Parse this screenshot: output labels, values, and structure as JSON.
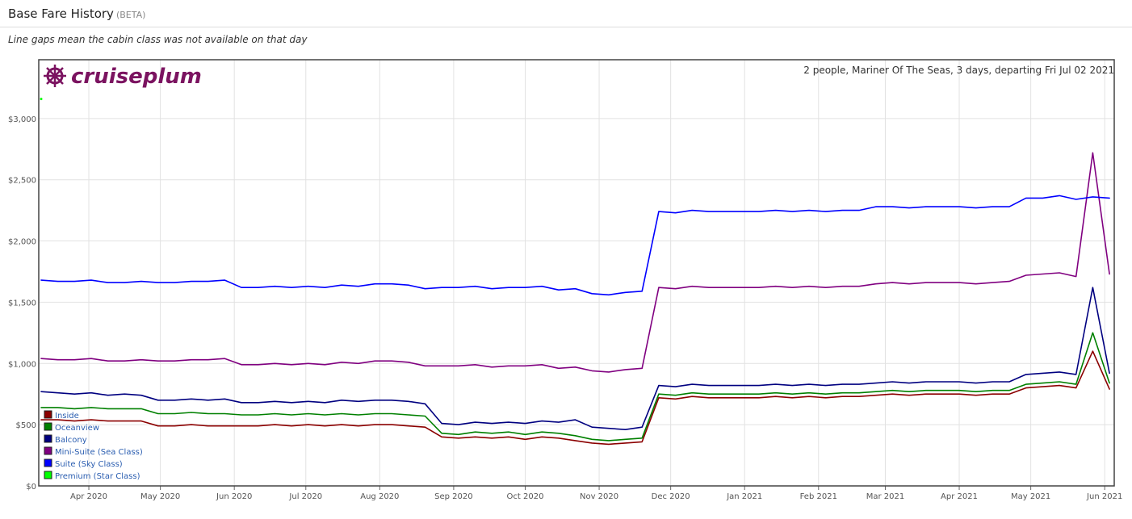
{
  "header": {
    "title": "Base Fare History",
    "badge": "(BETA)",
    "note": "Line gaps mean the cabin class was not available on that day"
  },
  "chart_data": {
    "type": "line",
    "logo": "cruiseplum",
    "subtitle": "2 people, Mariner Of The Seas, 3 days, departing Fri Jul 02 2021",
    "xlim": [
      -21,
      430
    ],
    "xticks": [
      {
        "value": 0,
        "label": "Apr 2020"
      },
      {
        "value": 30,
        "label": "May 2020"
      },
      {
        "value": 61,
        "label": "Jun 2020"
      },
      {
        "value": 91,
        "label": "Jul 2020"
      },
      {
        "value": 122,
        "label": "Aug 2020"
      },
      {
        "value": 153,
        "label": "Sep 2020"
      },
      {
        "value": 183,
        "label": "Oct 2020"
      },
      {
        "value": 214,
        "label": "Nov 2020"
      },
      {
        "value": 244,
        "label": "Dec 2020"
      },
      {
        "value": 275,
        "label": "Jan 2021"
      },
      {
        "value": 306,
        "label": "Feb 2021"
      },
      {
        "value": 334,
        "label": "Mar 2021"
      },
      {
        "value": 365,
        "label": "Apr 2021"
      },
      {
        "value": 395,
        "label": "May 2021"
      },
      {
        "value": 426,
        "label": "Jun 2021"
      }
    ],
    "ylim": [
      0,
      3480
    ],
    "yticks": [
      {
        "value": 0,
        "label": "$0"
      },
      {
        "value": 500,
        "label": "$500"
      },
      {
        "value": 1000,
        "label": "$1,000"
      },
      {
        "value": 1500,
        "label": "$1,500"
      },
      {
        "value": 2000,
        "label": "$2,000"
      },
      {
        "value": 2500,
        "label": "$2,500"
      },
      {
        "value": 3000,
        "label": "$3,000"
      }
    ],
    "grid": true,
    "legend": "bottom-left",
    "x": [
      -20,
      -13,
      -6,
      1,
      8,
      15,
      22,
      29,
      36,
      43,
      50,
      57,
      64,
      71,
      78,
      85,
      92,
      99,
      106,
      113,
      120,
      127,
      134,
      141,
      148,
      155,
      162,
      169,
      176,
      183,
      190,
      197,
      204,
      211,
      218,
      225,
      232,
      239,
      246,
      253,
      260,
      267,
      274,
      281,
      288,
      295,
      302,
      309,
      316,
      323,
      330,
      337,
      344,
      351,
      358,
      365,
      372,
      379,
      386,
      393,
      400,
      407,
      414,
      421,
      428
    ],
    "series": [
      {
        "name": "Inside",
        "color": "#8b0000",
        "values": [
          540,
          540,
          530,
          540,
          530,
          530,
          530,
          490,
          490,
          500,
          490,
          490,
          490,
          490,
          500,
          490,
          500,
          490,
          500,
          490,
          500,
          500,
          490,
          480,
          400,
          390,
          400,
          390,
          400,
          380,
          400,
          390,
          370,
          350,
          340,
          350,
          360,
          720,
          710,
          730,
          720,
          720,
          720,
          720,
          730,
          720,
          730,
          720,
          730,
          730,
          740,
          750,
          740,
          750,
          750,
          750,
          740,
          750,
          750,
          800,
          810,
          820,
          800,
          1100,
          790
        ]
      },
      {
        "name": "Oceanview",
        "color": "#008000",
        "values": [
          640,
          640,
          630,
          640,
          630,
          630,
          630,
          590,
          590,
          600,
          590,
          590,
          580,
          580,
          590,
          580,
          590,
          580,
          590,
          580,
          590,
          590,
          580,
          570,
          430,
          420,
          440,
          430,
          440,
          420,
          440,
          430,
          410,
          380,
          370,
          380,
          390,
          750,
          740,
          760,
          750,
          750,
          750,
          750,
          760,
          750,
          760,
          750,
          760,
          760,
          770,
          780,
          770,
          780,
          780,
          780,
          770,
          780,
          780,
          830,
          840,
          850,
          830,
          1250,
          840
        ]
      },
      {
        "name": "Balcony",
        "color": "#000080",
        "values": [
          770,
          760,
          750,
          760,
          740,
          750,
          740,
          700,
          700,
          710,
          700,
          710,
          680,
          680,
          690,
          680,
          690,
          680,
          700,
          690,
          700,
          700,
          690,
          670,
          510,
          500,
          520,
          510,
          520,
          510,
          530,
          520,
          540,
          480,
          470,
          460,
          480,
          820,
          810,
          830,
          820,
          820,
          820,
          820,
          830,
          820,
          830,
          820,
          830,
          830,
          840,
          850,
          840,
          850,
          850,
          850,
          840,
          850,
          850,
          910,
          920,
          930,
          910,
          1620,
          920
        ]
      },
      {
        "name": "Mini-Suite (Sea Class)",
        "color": "#800080",
        "values": [
          1040,
          1030,
          1030,
          1040,
          1020,
          1020,
          1030,
          1020,
          1020,
          1030,
          1030,
          1040,
          990,
          990,
          1000,
          990,
          1000,
          990,
          1010,
          1000,
          1020,
          1020,
          1010,
          980,
          980,
          980,
          990,
          970,
          980,
          980,
          990,
          960,
          970,
          940,
          930,
          950,
          960,
          1620,
          1610,
          1630,
          1620,
          1620,
          1620,
          1620,
          1630,
          1620,
          1630,
          1620,
          1630,
          1630,
          1650,
          1660,
          1650,
          1660,
          1660,
          1660,
          1650,
          1660,
          1670,
          1720,
          1730,
          1740,
          1710,
          2720,
          1730
        ]
      },
      {
        "name": "Suite (Sky Class)",
        "color": "#0000ff",
        "values": [
          1680,
          1670,
          1670,
          1680,
          1660,
          1660,
          1670,
          1660,
          1660,
          1670,
          1670,
          1680,
          1620,
          1620,
          1630,
          1620,
          1630,
          1620,
          1640,
          1630,
          1650,
          1650,
          1640,
          1610,
          1620,
          1620,
          1630,
          1610,
          1620,
          1620,
          1630,
          1600,
          1610,
          1570,
          1560,
          1580,
          1590,
          2240,
          2230,
          2250,
          2240,
          2240,
          2240,
          2240,
          2250,
          2240,
          2250,
          2240,
          2250,
          2250,
          2280,
          2280,
          2270,
          2280,
          2280,
          2280,
          2270,
          2280,
          2280,
          2350,
          2350,
          2370,
          2340,
          2360,
          2350
        ]
      },
      {
        "name": "Premium (Star Class)",
        "color": "#00ff00",
        "values": [
          3160,
          null,
          null,
          null,
          null,
          null,
          null,
          null,
          null,
          null,
          null,
          null,
          null,
          null,
          null,
          null,
          null,
          null,
          null,
          null,
          null,
          null,
          null,
          null,
          null,
          null,
          null,
          null,
          null,
          null,
          null,
          null,
          null,
          null,
          null,
          null,
          null,
          null,
          null,
          null,
          null,
          null,
          null,
          null,
          null,
          null,
          null,
          null,
          null,
          null,
          null,
          null,
          null,
          null,
          null,
          null,
          null,
          null,
          null,
          null,
          null,
          null,
          null,
          null,
          null
        ]
      }
    ]
  }
}
